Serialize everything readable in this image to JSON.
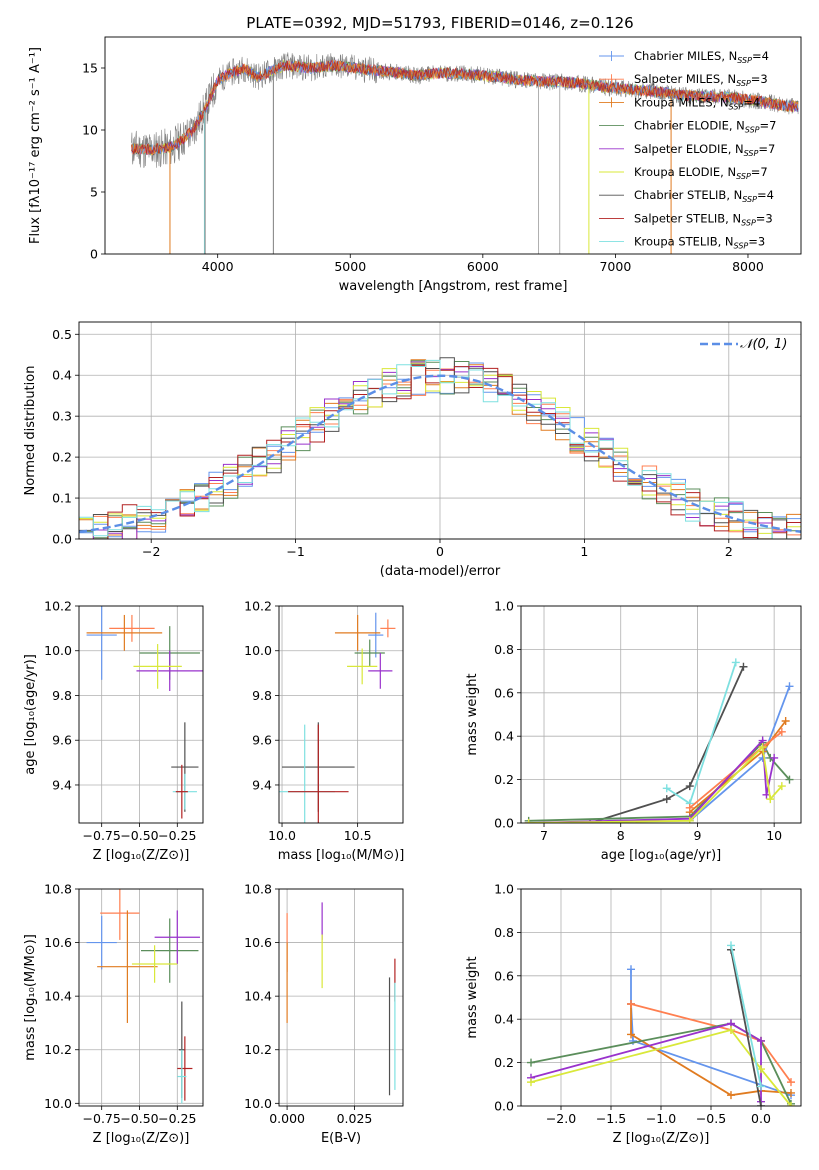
{
  "figure_title": "PLATE=0392, MJD=51793, FIBERID=0146, z=0.126",
  "chart_data": [
    {
      "id": "spectrum",
      "type": "line",
      "xlabel": "wavelength [Angstrom, rest frame]",
      "ylabel": "Flux [fλ10⁻¹⁷ erg cm⁻² s⁻¹ A⁻¹]",
      "xlim": [
        3150,
        8400
      ],
      "ylim": [
        0,
        17.5
      ],
      "xticks": [
        4000,
        5000,
        6000,
        7000,
        8000
      ],
      "yticks": [
        0,
        5,
        10,
        15
      ],
      "grid": false,
      "legend_position": "top-right",
      "data_spectrum": {
        "x": [
          3350,
          3500,
          3650,
          3800,
          3900,
          4000,
          4100,
          4200,
          4300,
          4500,
          4700,
          4900,
          5100,
          5300,
          5500,
          5700,
          5900,
          6100,
          6300,
          6500,
          6700,
          6900,
          7100,
          7300,
          7500,
          7700,
          7900,
          8100,
          8300
        ],
        "y": [
          8.5,
          8.4,
          8.6,
          9.8,
          11.5,
          14.0,
          14.6,
          15.0,
          14.3,
          15.2,
          15.0,
          15.2,
          14.9,
          14.7,
          14.4,
          14.6,
          14.5,
          14.3,
          14.0,
          13.9,
          13.8,
          13.5,
          13.3,
          13.1,
          12.8,
          12.7,
          12.6,
          12.3,
          11.9
        ]
      },
      "series": [
        {
          "name": "Chabrier MILES, N",
          "sub": "SSP",
          "suffix": "=4",
          "color": "#6495ed",
          "marker": "plus"
        },
        {
          "name": "Salpeter MILES, N",
          "sub": "SSP",
          "suffix": "=3",
          "color": "#ff7f50",
          "marker": "plus"
        },
        {
          "name": "Kroupa MILES, N",
          "sub": "SSP",
          "suffix": "=4",
          "color": "#e07b20",
          "marker": "plus"
        },
        {
          "name": "Chabrier ELODIE, N",
          "sub": "SSP",
          "suffix": "=7",
          "color": "#5b8e5b",
          "marker": "line"
        },
        {
          "name": "Salpeter ELODIE, N",
          "sub": "SSP",
          "suffix": "=7",
          "color": "#9932cc",
          "marker": "line"
        },
        {
          "name": "Kroupa ELODIE, N",
          "sub": "SSP",
          "suffix": "=7",
          "color": "#d9e83a",
          "marker": "line"
        },
        {
          "name": "Chabrier STELIB, N",
          "sub": "SSP",
          "suffix": "=4",
          "color": "#505050",
          "marker": "line"
        },
        {
          "name": "Salpeter STELIB, N",
          "sub": "SSP",
          "suffix": "=3",
          "color": "#b22222",
          "marker": "line"
        },
        {
          "name": "Kroupa STELIB, N",
          "sub": "SSP",
          "suffix": "=3",
          "color": "#7ee0e0",
          "marker": "line"
        }
      ]
    },
    {
      "id": "residuals",
      "type": "line",
      "xlabel": "(data-model)/error",
      "ylabel": "Normed distribution",
      "xlim": [
        -2.5,
        2.5
      ],
      "ylim": [
        0,
        0.53
      ],
      "xticks": [
        -2,
        -1,
        0,
        1,
        2
      ],
      "yticks": [
        0.0,
        0.1,
        0.2,
        0.3,
        0.4,
        0.5
      ],
      "grid": true,
      "legend_position": "top-right",
      "legend_label": "𝒩(0, 1)",
      "gaussian_color": "#5b8ee6",
      "bin_width": 0.1
    },
    {
      "id": "age_vs_Z",
      "type": "scatter",
      "xlabel": "Z [log₁₀(Z/Z⊙)]",
      "ylabel": "age  [log₁₀(age/yr)]",
      "xlim": [
        -0.9,
        -0.08
      ],
      "ylim": [
        9.23,
        10.2
      ],
      "xticks": [
        -0.75,
        -0.5,
        -0.25
      ],
      "yticks": [
        9.4,
        9.6,
        9.8,
        10.0,
        10.2
      ],
      "grid": true,
      "points": [
        {
          "series": 0,
          "x": -0.75,
          "y": 10.07,
          "xerr": 0.1,
          "yerr": 0.2
        },
        {
          "series": 3,
          "x": -0.3,
          "y": 9.99,
          "xerr": 0.2,
          "yerr": 0.12
        },
        {
          "series": 4,
          "x": -0.3,
          "y": 9.91,
          "xerr": 0.22,
          "yerr": 0.09
        },
        {
          "series": 5,
          "x": -0.38,
          "y": 9.93,
          "xerr": 0.16,
          "yerr": 0.1
        },
        {
          "series": 6,
          "x": -0.2,
          "y": 9.48,
          "xerr": 0.09,
          "yerr": 0.2
        },
        {
          "series": 1,
          "x": -0.55,
          "y": 10.1,
          "xerr": 0.15,
          "yerr": 0.06
        },
        {
          "series": 2,
          "x": -0.6,
          "y": 10.08,
          "xerr": 0.25,
          "yerr": 0.08
        },
        {
          "series": 8,
          "x": -0.2,
          "y": 9.37,
          "xerr": 0.08,
          "yerr": 0.08
        },
        {
          "series": 7,
          "x": -0.22,
          "y": 9.37,
          "xerr": 0.04,
          "yerr": 0.12
        }
      ]
    },
    {
      "id": "age_vs_mass",
      "type": "scatter",
      "xlabel": "mass [log₁₀(M/M⊙)]",
      "ylabel": "",
      "xlim": [
        9.98,
        10.8
      ],
      "ylim": [
        9.23,
        10.2
      ],
      "xticks": [
        10.0,
        10.5
      ],
      "yticks": [
        9.4,
        9.6,
        9.8,
        10.0,
        10.2
      ],
      "grid": true,
      "points": [
        {
          "series": 0,
          "x": 10.62,
          "y": 10.07,
          "xerr": 0.05,
          "yerr": 0.1
        },
        {
          "series": 3,
          "x": 10.58,
          "y": 9.99,
          "xerr": 0.1,
          "yerr": 0.06
        },
        {
          "series": 4,
          "x": 10.65,
          "y": 9.91,
          "xerr": 0.08,
          "yerr": 0.08
        },
        {
          "series": 5,
          "x": 10.53,
          "y": 9.93,
          "xerr": 0.1,
          "yerr": 0.08
        },
        {
          "series": 6,
          "x": 10.24,
          "y": 9.48,
          "xerr": 0.24,
          "yerr": 0.2
        },
        {
          "series": 1,
          "x": 10.7,
          "y": 10.1,
          "xerr": 0.05,
          "yerr": 0.04
        },
        {
          "series": 2,
          "x": 10.5,
          "y": 10.08,
          "xerr": 0.15,
          "yerr": 0.08
        },
        {
          "series": 8,
          "x": 10.15,
          "y": 9.37,
          "xerr": 0.2,
          "yerr": 0.3
        },
        {
          "series": 7,
          "x": 10.24,
          "y": 9.37,
          "xerr": 0.2,
          "yerr": 0.3
        }
      ]
    },
    {
      "id": "weight_vs_age",
      "type": "line",
      "xlabel": "age  [log₁₀(age/yr)]",
      "ylabel": "mass weight",
      "xlim": [
        6.7,
        10.35
      ],
      "ylim": [
        0,
        1.0
      ],
      "xticks": [
        7,
        8,
        9,
        10
      ],
      "yticks": [
        0.0,
        0.2,
        0.4,
        0.6,
        0.8,
        1.0
      ],
      "grid": true,
      "lines": [
        {
          "series": 6,
          "x": [
            7.6,
            8.6,
            8.9,
            9.6
          ],
          "y": [
            0.0,
            0.11,
            0.17,
            0.72
          ]
        },
        {
          "series": 8,
          "x": [
            8.6,
            8.9,
            9.5
          ],
          "y": [
            0.16,
            0.09,
            0.74
          ]
        },
        {
          "series": 3,
          "x": [
            6.8,
            8.9,
            9.85,
            9.95,
            10.2
          ],
          "y": [
            0.01,
            0.03,
            0.37,
            0.3,
            0.2
          ]
        },
        {
          "series": 0,
          "x": [
            8.9,
            9.85,
            10.2
          ],
          "y": [
            0.01,
            0.3,
            0.63
          ]
        },
        {
          "series": 2,
          "x": [
            8.9,
            9.85,
            10.15
          ],
          "y": [
            0.05,
            0.33,
            0.47
          ]
        },
        {
          "series": 1,
          "x": [
            8.9,
            9.85,
            10.1
          ],
          "y": [
            0.07,
            0.35,
            0.42
          ]
        },
        {
          "series": 4,
          "x": [
            6.8,
            8.9,
            9.85,
            9.9,
            10.0
          ],
          "y": [
            0.0,
            0.02,
            0.38,
            0.13,
            0.3
          ]
        },
        {
          "series": 5,
          "x": [
            6.8,
            8.9,
            9.85,
            9.95,
            10.1
          ],
          "y": [
            0.0,
            0.01,
            0.35,
            0.11,
            0.17
          ]
        }
      ]
    },
    {
      "id": "mass_vs_Z",
      "type": "scatter",
      "xlabel": "Z [log₁₀(Z/Z⊙)]",
      "ylabel": "mass [log₁₀(M/M⊙)]",
      "xlim": [
        -0.9,
        -0.08
      ],
      "ylim": [
        9.99,
        10.8
      ],
      "xticks": [
        -0.75,
        -0.5,
        -0.25
      ],
      "yticks": [
        10.0,
        10.2,
        10.4,
        10.6,
        10.8
      ],
      "grid": true,
      "points": [
        {
          "series": 0,
          "x": -0.75,
          "y": 10.6,
          "xerr": 0.1,
          "yerr": 0.1
        },
        {
          "series": 1,
          "x": -0.63,
          "y": 10.71,
          "xerr": 0.13,
          "yerr": 0.1
        },
        {
          "series": 2,
          "x": -0.58,
          "y": 10.51,
          "xerr": 0.2,
          "yerr": 0.21
        },
        {
          "series": 3,
          "x": -0.3,
          "y": 10.57,
          "xerr": 0.19,
          "yerr": 0.12
        },
        {
          "series": 4,
          "x": -0.25,
          "y": 10.62,
          "xerr": 0.15,
          "yerr": 0.1
        },
        {
          "series": 5,
          "x": -0.4,
          "y": 10.52,
          "xerr": 0.15,
          "yerr": 0.07
        },
        {
          "series": 6,
          "x": -0.22,
          "y": 10.2,
          "xerr": 0.02,
          "yerr": 0.18
        },
        {
          "series": 7,
          "x": -0.2,
          "y": 10.13,
          "xerr": 0.05,
          "yerr": 0.12
        },
        {
          "series": 8,
          "x": -0.22,
          "y": 10.1,
          "xerr": 0.03,
          "yerr": 0.1
        }
      ]
    },
    {
      "id": "mass_vs_ebv",
      "type": "scatter",
      "xlabel": "E(B-V)",
      "ylabel": "",
      "xlim": [
        -0.003,
        0.043
      ],
      "ylim": [
        9.99,
        10.8
      ],
      "xticks": [
        0.0,
        0.025
      ],
      "yticks": [
        10.0,
        10.2,
        10.4,
        10.6,
        10.8
      ],
      "grid": true,
      "points": [
        {
          "series": 1,
          "x": 0.0,
          "y": 10.6,
          "xerr": 0.0,
          "yerr": 0.11
        },
        {
          "series": 2,
          "x": 0.0,
          "y": 10.45,
          "xerr": 0.0,
          "yerr": 0.15
        },
        {
          "series": 4,
          "x": 0.013,
          "y": 10.68,
          "xerr": 0.0,
          "yerr": 0.07
        },
        {
          "series": 5,
          "x": 0.013,
          "y": 10.53,
          "xerr": 0.0,
          "yerr": 0.1
        },
        {
          "series": 6,
          "x": 0.038,
          "y": 10.25,
          "xerr": 0.0,
          "yerr": 0.22
        },
        {
          "series": 7,
          "x": 0.04,
          "y": 10.46,
          "xerr": 0.0,
          "yerr": 0.08
        },
        {
          "series": 8,
          "x": 0.04,
          "y": 10.25,
          "xerr": 0.0,
          "yerr": 0.2
        }
      ]
    },
    {
      "id": "weight_vs_Z",
      "type": "line",
      "xlabel": "Z [log₁₀(Z/Z⊙)]",
      "ylabel": "mass weight",
      "xlim": [
        -2.4,
        0.4
      ],
      "ylim": [
        0,
        1.0
      ],
      "xticks": [
        -2.0,
        -1.5,
        -1.0,
        -0.5,
        0.0
      ],
      "yticks": [
        0.0,
        0.2,
        0.4,
        0.6,
        0.8,
        1.0
      ],
      "grid": true,
      "lines": [
        {
          "series": 0,
          "x": [
            -1.3,
            -1.3,
            -1.28,
            0.3
          ],
          "y": [
            0.63,
            0.47,
            0.3,
            0.05
          ]
        },
        {
          "series": 2,
          "x": [
            -1.3,
            -1.3,
            -0.3,
            0.0,
            0.3
          ],
          "y": [
            0.47,
            0.33,
            0.05,
            0.07,
            0.06
          ]
        },
        {
          "series": 1,
          "x": [
            -1.3,
            -0.3,
            0.0,
            0.3
          ],
          "y": [
            0.47,
            0.35,
            0.3,
            0.11
          ]
        },
        {
          "series": 3,
          "x": [
            -2.3,
            -0.3,
            0.0,
            0.3
          ],
          "y": [
            0.2,
            0.38,
            0.3,
            0.01
          ]
        },
        {
          "series": 4,
          "x": [
            -2.3,
            -0.3,
            0.0,
            0.0
          ],
          "y": [
            0.13,
            0.38,
            0.3,
            0.02
          ]
        },
        {
          "series": 5,
          "x": [
            -2.3,
            -0.3,
            0.0,
            0.3
          ],
          "y": [
            0.11,
            0.35,
            0.17,
            0.0
          ]
        },
        {
          "series": 6,
          "x": [
            -0.3,
            0.0
          ],
          "y": [
            0.72,
            0.0
          ]
        },
        {
          "series": 8,
          "x": [
            -0.3,
            0.0
          ],
          "y": [
            0.74,
            0.09
          ]
        }
      ]
    }
  ]
}
